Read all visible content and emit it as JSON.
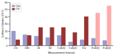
{
  "chart_data": {
    "type": "bar",
    "xlabel": "Measurement Interval",
    "ylabel": "Coefficient of Variation (CV %)",
    "categories": [
      "1 hr",
      "10hr",
      "1d",
      "5d",
      "1 wk(1)",
      "1 wk(2)",
      "6 w",
      "8 wk(1)",
      "8 wk(2)"
    ],
    "series": [
      {
        "name": "CVa",
        "color": "#9999cc",
        "values": [
          20,
          15,
          13,
          11,
          14,
          5,
          8,
          10,
          7
        ]
      },
      {
        "name": "CVi",
        "color": "#993333",
        "colors": [
          "#993333",
          "#993333",
          "#993333",
          "#993333",
          "#993333",
          "#993333",
          "#993333",
          "#ffaaaa",
          "#ffaaaa"
        ],
        "values": [
          8,
          14,
          25,
          25,
          25,
          18,
          40,
          45,
          55
        ]
      }
    ],
    "ylim": [
      0,
      60
    ],
    "yticks": [
      0,
      10,
      20,
      30,
      40,
      50,
      60
    ],
    "legend": "upper left"
  }
}
